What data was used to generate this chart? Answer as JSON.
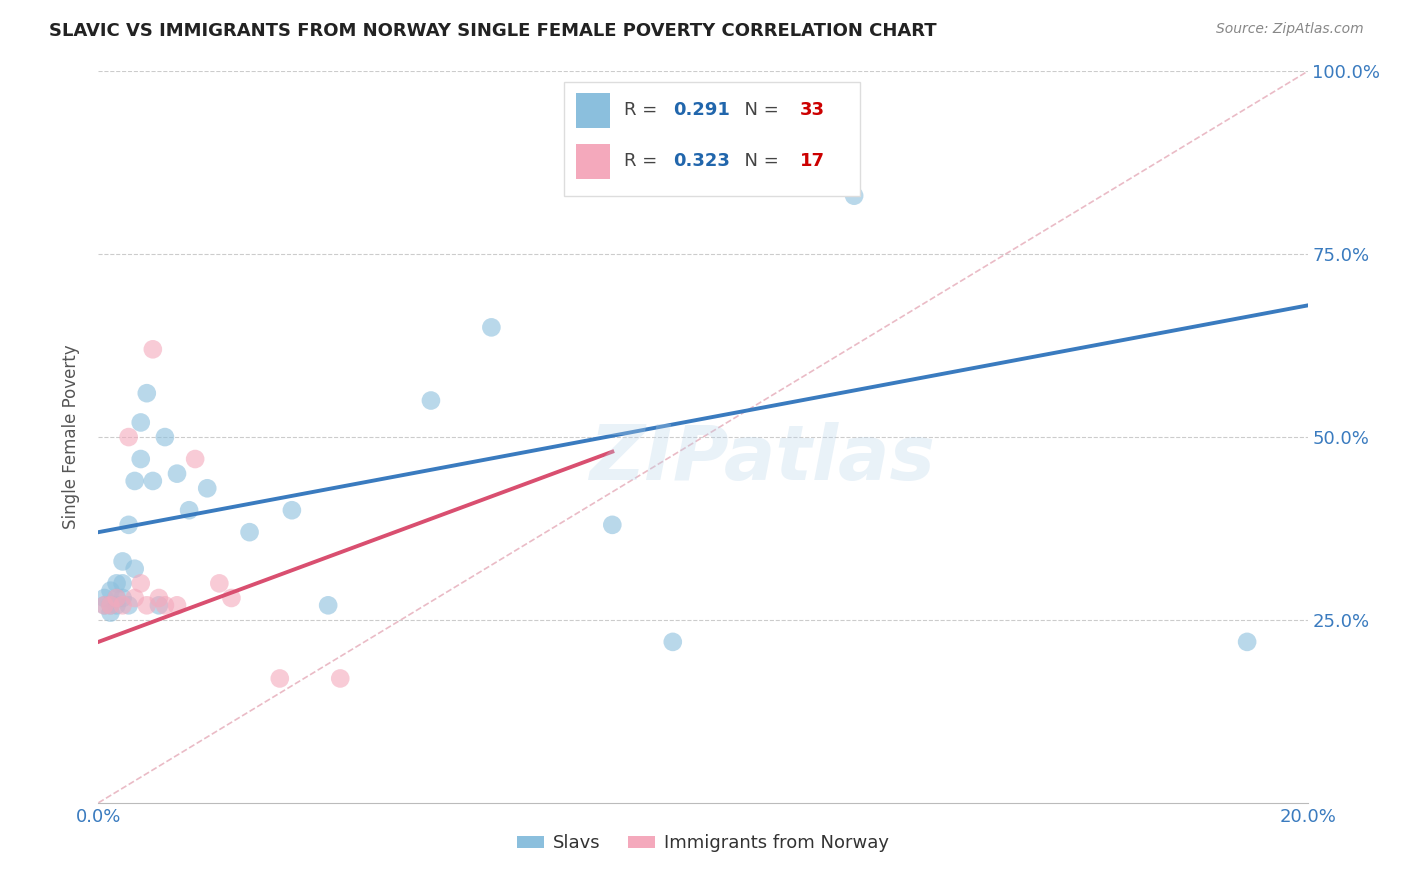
{
  "title": "SLAVIC VS IMMIGRANTS FROM NORWAY SINGLE FEMALE POVERTY CORRELATION CHART",
  "source": "Source: ZipAtlas.com",
  "ylabel": "Single Female Poverty",
  "watermark": "ZIPatlas",
  "x_min": 0.0,
  "x_max": 0.2,
  "y_min": 0.0,
  "y_max": 1.0,
  "slavs_color": "#8bbfdd",
  "norway_color": "#f4a9bc",
  "slavs_line_color": "#3a7bbf",
  "norway_line_color": "#d94f70",
  "diagonal_color": "#cccccc",
  "R_slavs": 0.291,
  "N_slavs": 33,
  "R_norway": 0.323,
  "N_norway": 17,
  "slavs_x": [
    0.001,
    0.001,
    0.002,
    0.002,
    0.002,
    0.003,
    0.003,
    0.003,
    0.004,
    0.004,
    0.004,
    0.005,
    0.005,
    0.006,
    0.006,
    0.007,
    0.007,
    0.008,
    0.009,
    0.01,
    0.011,
    0.013,
    0.015,
    0.018,
    0.025,
    0.032,
    0.038,
    0.055,
    0.065,
    0.085,
    0.095,
    0.125,
    0.19
  ],
  "slavs_y": [
    0.27,
    0.28,
    0.26,
    0.27,
    0.29,
    0.27,
    0.28,
    0.3,
    0.28,
    0.3,
    0.33,
    0.38,
    0.27,
    0.32,
    0.44,
    0.52,
    0.47,
    0.56,
    0.44,
    0.27,
    0.5,
    0.45,
    0.4,
    0.43,
    0.37,
    0.4,
    0.27,
    0.55,
    0.65,
    0.38,
    0.22,
    0.83,
    0.22
  ],
  "norway_x": [
    0.001,
    0.002,
    0.003,
    0.004,
    0.005,
    0.006,
    0.007,
    0.008,
    0.009,
    0.01,
    0.011,
    0.013,
    0.016,
    0.02,
    0.022,
    0.03,
    0.04
  ],
  "norway_y": [
    0.27,
    0.27,
    0.28,
    0.27,
    0.5,
    0.28,
    0.3,
    0.27,
    0.62,
    0.28,
    0.27,
    0.27,
    0.47,
    0.3,
    0.28,
    0.17,
    0.17
  ],
  "slavs_line_x0": 0.0,
  "slavs_line_y0": 0.37,
  "slavs_line_x1": 0.2,
  "slavs_line_y1": 0.68,
  "norway_line_x0": 0.0,
  "norway_line_x1": 0.085,
  "norway_line_y0": 0.22,
  "norway_line_y1": 0.48
}
